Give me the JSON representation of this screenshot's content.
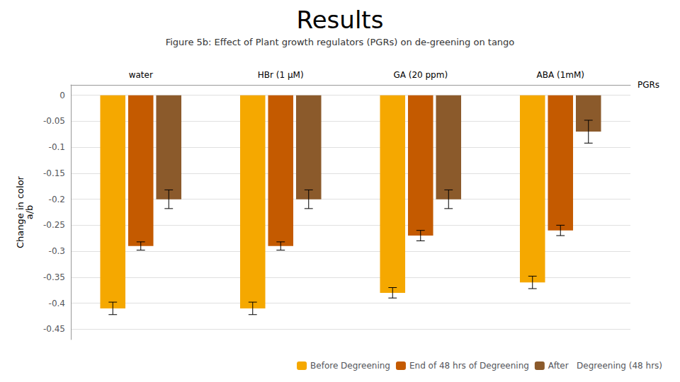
{
  "chart_data": {
    "type": "bar",
    "title": "Results",
    "subtitle": "Figure 5b: Effect of Plant growth regulators (PGRs) on de-greening on tango",
    "ylabel": "Change in color\na/b",
    "annotations": [
      "PGRs"
    ],
    "categories": [
      "water",
      "HBr (1 μM)",
      "GA (20 ppm)",
      "ABA (1mM)"
    ],
    "series": [
      {
        "name": "Before Degreening",
        "color": "#F5A800",
        "values": [
          -0.41,
          -0.41,
          -0.38,
          -0.36
        ],
        "errors": [
          0.012,
          0.012,
          0.01,
          0.012
        ]
      },
      {
        "name": "End of 48 hrs of Degreening",
        "color": "#C45A00",
        "values": [
          -0.29,
          -0.29,
          -0.27,
          -0.26
        ],
        "errors": [
          0.008,
          0.008,
          0.01,
          0.01
        ]
      },
      {
        "name": "After   Degreening (48 hrs)",
        "color": "#8B5A2B",
        "values": [
          -0.2,
          -0.2,
          -0.2,
          -0.07
        ],
        "errors": [
          0.018,
          0.018,
          0.018,
          0.022
        ]
      }
    ],
    "ylim": [
      -0.47,
      0.02
    ],
    "yticks": [
      0,
      -0.05,
      -0.1,
      -0.15,
      -0.2,
      -0.25,
      -0.3,
      -0.35,
      -0.4,
      -0.45
    ],
    "grid": true,
    "legend": "lower right"
  }
}
